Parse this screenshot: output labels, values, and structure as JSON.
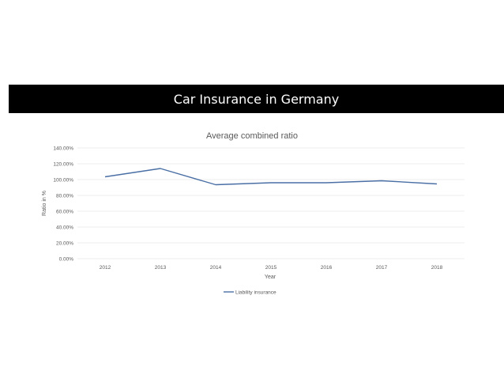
{
  "banner": {
    "title": "Car Insurance in Germany"
  },
  "chart_data": {
    "type": "line",
    "title": "Average combined ratio",
    "xlabel": "Year",
    "ylabel": "Ratio in %",
    "categories": [
      "2012",
      "2013",
      "2014",
      "2015",
      "2016",
      "2017",
      "2018"
    ],
    "series": [
      {
        "name": "Liability insurance",
        "values": [
          103.5,
          114.0,
          93.5,
          96.0,
          96.0,
          98.5,
          94.5
        ],
        "color": "#4a6fa5"
      }
    ],
    "yticks": [
      "0.00%",
      "20.00%",
      "40.00%",
      "60.00%",
      "80.00%",
      "100.00%",
      "120.00%",
      "140.00%"
    ],
    "ylim": [
      0,
      140
    ],
    "grid": true,
    "legend_position": "bottom"
  }
}
